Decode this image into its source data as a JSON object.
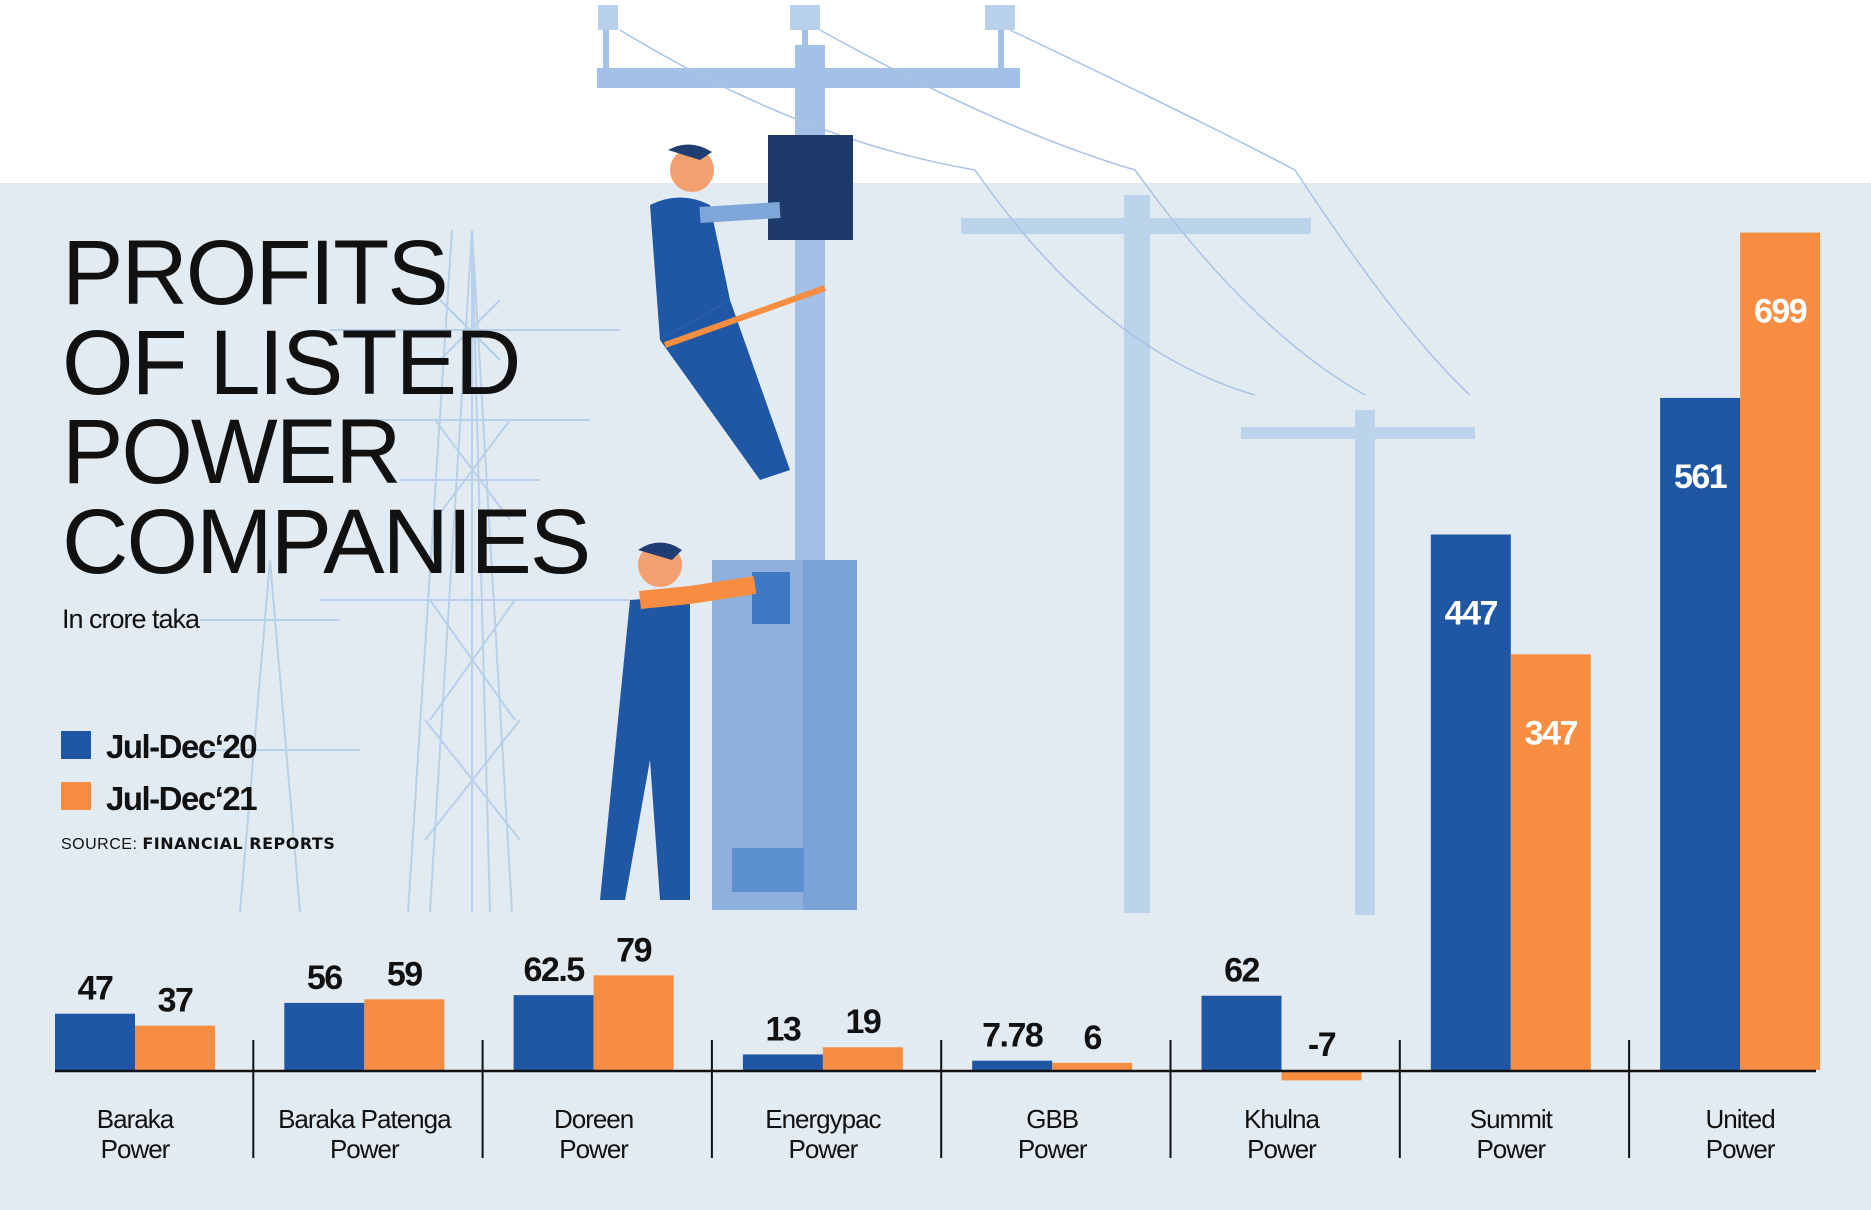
{
  "title_lines": [
    "PROFITS",
    "OF LISTED",
    "POWER",
    "COMPANIES"
  ],
  "subtitle": "In crore taka",
  "source_label": "SOURCE:",
  "source_value": "FINANCIAL REPORTS",
  "colors": {
    "series1": "#1f57a4",
    "series2": "#f68d40",
    "background": "#e2ebf2"
  },
  "chart_data": {
    "type": "bar",
    "title": "Profits of listed power companies",
    "ylabel": "In crore taka",
    "categories": [
      [
        "Baraka",
        "Power"
      ],
      [
        "Baraka Patenga",
        "Power"
      ],
      [
        "Doreen",
        "Power"
      ],
      [
        "Energypac",
        "Power"
      ],
      [
        "GBB",
        "Power"
      ],
      [
        "Khulna",
        "Power"
      ],
      [
        "Summit",
        "Power"
      ],
      [
        "United",
        "Power"
      ]
    ],
    "series": [
      {
        "name": "Jul-Dec‘20",
        "values": [
          47,
          56,
          62.5,
          13,
          7.78,
          62,
          447,
          561
        ],
        "labels": [
          "47",
          "56",
          "62.5",
          "13",
          "7.78",
          "62",
          "447",
          "561"
        ]
      },
      {
        "name": "Jul-Dec‘21",
        "values": [
          37,
          59,
          79,
          19,
          6,
          -7,
          347,
          699
        ],
        "labels": [
          "37",
          "59",
          "79",
          "19",
          "6",
          "-7",
          "347",
          "699"
        ]
      }
    ],
    "legend": "left",
    "grid": false
  }
}
